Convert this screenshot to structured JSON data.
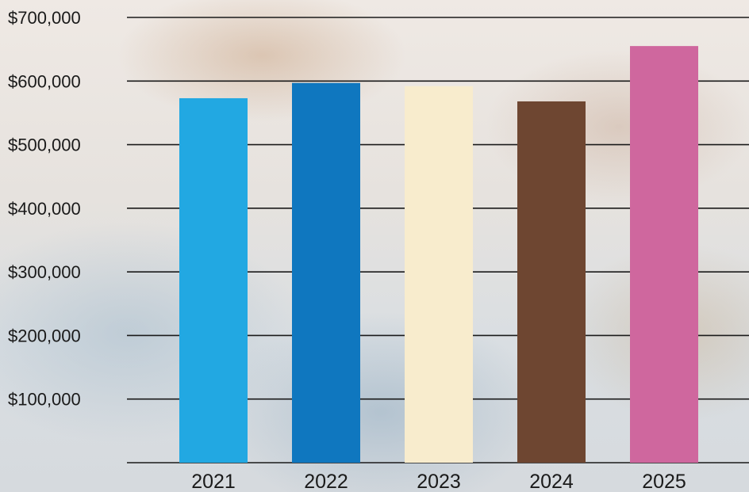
{
  "chart_data": {
    "type": "bar",
    "title": "",
    "xlabel": "",
    "ylabel": "",
    "categories": [
      "2021",
      "2022",
      "2023",
      "2024",
      "2025"
    ],
    "values": [
      573000,
      597000,
      592000,
      568000,
      655000
    ],
    "colors": [
      "#22a8e2",
      "#0f77bf",
      "#f8eccd",
      "#6e4631",
      "#cf679e"
    ],
    "ylim": [
      0,
      700000
    ],
    "yticks": [
      100000,
      200000,
      300000,
      400000,
      500000,
      600000,
      700000
    ],
    "ytick_labels": [
      "$100,000",
      "$200,000",
      "$300,000",
      "$400,000",
      "$500,000",
      "$600,000",
      "$700,000"
    ],
    "grid": true,
    "legend": "none"
  }
}
